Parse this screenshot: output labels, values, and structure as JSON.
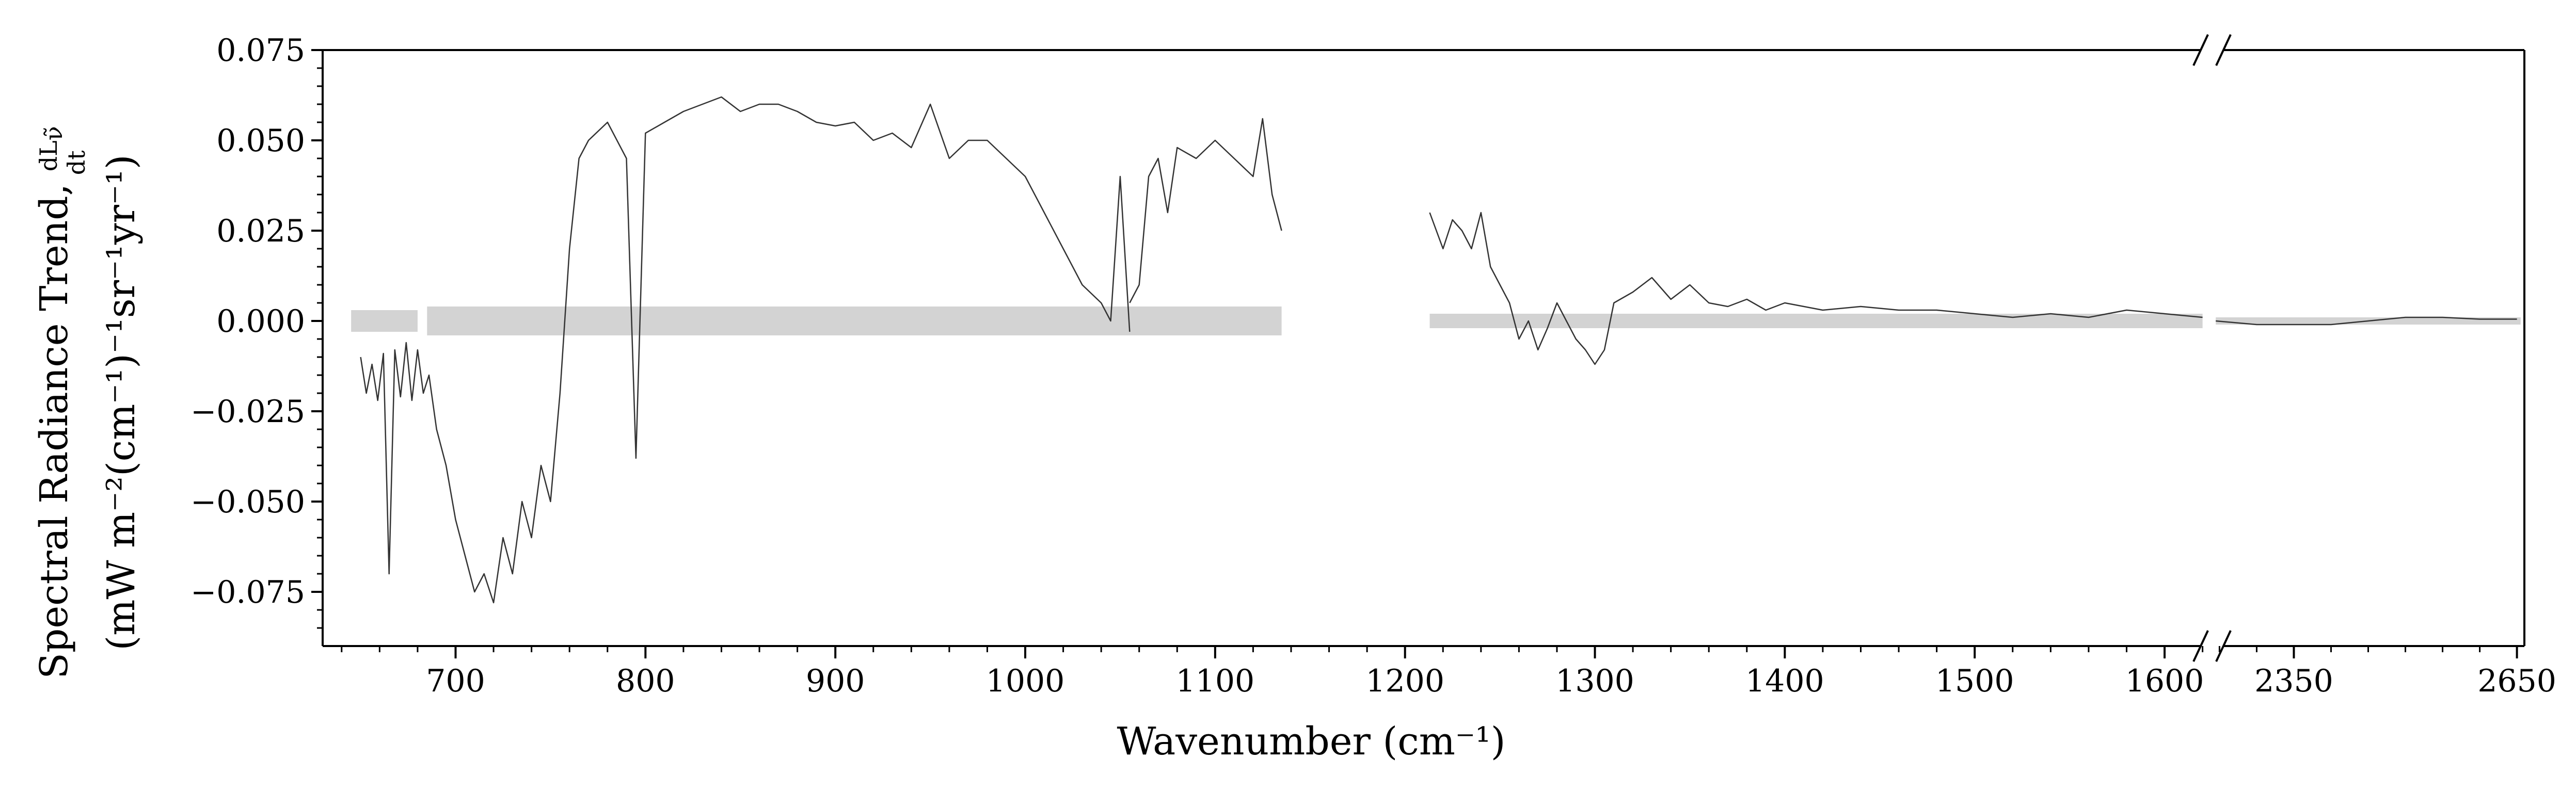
{
  "chart_data": {
    "type": "line",
    "title": "",
    "xlabel": "Wavenumber (cm⁻¹)",
    "ylabel_line1": "Spectral Radiance Trend, dL/dt",
    "ylabel_fraction": {
      "numerator": "dL",
      "numerator_sub": "ν̃",
      "denominator": "dt"
    },
    "ylabel_line2": "(mW m⁻²(cm⁻¹)⁻¹sr⁻¹yr⁻¹)",
    "ylim": [
      -0.09,
      0.075
    ],
    "yticks": [
      -0.075,
      -0.05,
      -0.025,
      0.0,
      0.025,
      0.05,
      0.075
    ],
    "ytick_labels": [
      "−0.075",
      "−0.050",
      "−0.025",
      "0.000",
      "0.025",
      "0.050",
      "0.075"
    ],
    "x_axis_broken": true,
    "x_segments": [
      {
        "range": [
          630,
          1625
        ],
        "ticks": [
          700,
          800,
          900,
          1000,
          1100,
          1200,
          1300,
          1400,
          1500,
          1600
        ],
        "tick_labels": [
          "700",
          "800",
          "900",
          "1000",
          "1100",
          "1200",
          "1300",
          "1400",
          "1500",
          "1600"
        ]
      },
      {
        "range": [
          2240,
          2660
        ],
        "ticks": [
          2350,
          2650
        ],
        "tick_labels": [
          "2350",
          "2650"
        ]
      }
    ],
    "grid": false,
    "legend": "none",
    "series": [
      {
        "color": "#333333",
        "style": "line",
        "segments": [
          {
            "x": [
              650,
              653,
              656,
              659,
              662,
              665,
              668,
              671,
              674,
              677,
              680,
              683,
              686,
              690,
              695,
              700,
              705,
              710,
              715,
              720,
              725,
              730,
              735,
              740,
              745,
              750,
              755,
              760,
              765,
              770,
              780,
              790,
              795,
              800,
              810,
              820,
              830,
              840,
              850,
              860,
              870,
              880,
              890,
              900,
              910,
              920,
              930,
              940,
              950,
              960,
              970,
              980,
              990,
              1000,
              1010,
              1020,
              1030,
              1040,
              1045,
              1050,
              1055
            ],
            "y": [
              -0.01,
              -0.02,
              -0.012,
              -0.022,
              -0.009,
              -0.07,
              -0.008,
              -0.021,
              -0.006,
              -0.022,
              -0.008,
              -0.02,
              -0.015,
              -0.03,
              -0.04,
              -0.055,
              -0.065,
              -0.075,
              -0.07,
              -0.078,
              -0.06,
              -0.07,
              -0.05,
              -0.06,
              -0.04,
              -0.05,
              -0.02,
              0.02,
              0.045,
              0.05,
              0.055,
              0.045,
              -0.038,
              0.052,
              0.055,
              0.058,
              0.06,
              0.062,
              0.058,
              0.06,
              0.06,
              0.058,
              0.055,
              0.054,
              0.055,
              0.05,
              0.052,
              0.048,
              0.06,
              0.045,
              0.05,
              0.05,
              0.045,
              0.04,
              0.03,
              0.02,
              0.01,
              0.005,
              0.0,
              0.04,
              -0.003
            ]
          },
          {
            "x": [
              1055,
              1060,
              1065,
              1070,
              1075,
              1080,
              1090,
              1100,
              1110,
              1120,
              1125,
              1130,
              1135
            ],
            "y": [
              0.005,
              0.01,
              0.04,
              0.045,
              0.03,
              0.048,
              0.045,
              0.05,
              0.045,
              0.04,
              0.056,
              0.035,
              0.025
            ]
          },
          {
            "x": [
              1213,
              1220,
              1225,
              1230,
              1235,
              1240,
              1245,
              1250,
              1255,
              1260,
              1265,
              1270,
              1275,
              1280,
              1285,
              1290,
              1295,
              1300,
              1305,
              1310,
              1320,
              1330,
              1340,
              1350,
              1360,
              1370,
              1380,
              1390,
              1400,
              1420,
              1440,
              1460,
              1480,
              1500,
              1520,
              1540,
              1560,
              1580,
              1600,
              1620
            ],
            "y": [
              0.03,
              0.02,
              0.028,
              0.025,
              0.02,
              0.03,
              0.015,
              0.01,
              0.005,
              -0.005,
              0.0,
              -0.008,
              -0.002,
              0.005,
              0.0,
              -0.005,
              -0.008,
              -0.012,
              -0.008,
              0.005,
              0.008,
              0.012,
              0.006,
              0.01,
              0.005,
              0.004,
              0.006,
              0.003,
              0.005,
              0.003,
              0.004,
              0.003,
              0.003,
              0.002,
              0.001,
              0.002,
              0.001,
              0.003,
              0.002,
              0.001
            ]
          },
          {
            "x": [
              2245,
              2300,
              2350,
              2400,
              2450,
              2500,
              2550,
              2600,
              2650
            ],
            "y": [
              0.0,
              -0.001,
              -0.001,
              -0.001,
              0.0,
              0.001,
              0.001,
              0.0005,
              0.0005
            ]
          }
        ]
      },
      {
        "color": "#d3d3d3",
        "style": "band",
        "segments": [
          {
            "x_range": [
              645,
              680
            ],
            "y_range": [
              -0.003,
              0.003
            ]
          },
          {
            "x_range": [
              685,
              1135
            ],
            "y_range": [
              -0.004,
              0.004
            ]
          },
          {
            "x_range": [
              1213,
              1620
            ],
            "y_range": [
              -0.002,
              0.002
            ]
          },
          {
            "x_range": [
              2245,
              2655
            ],
            "y_range": [
              -0.001,
              0.001
            ]
          }
        ]
      }
    ]
  }
}
